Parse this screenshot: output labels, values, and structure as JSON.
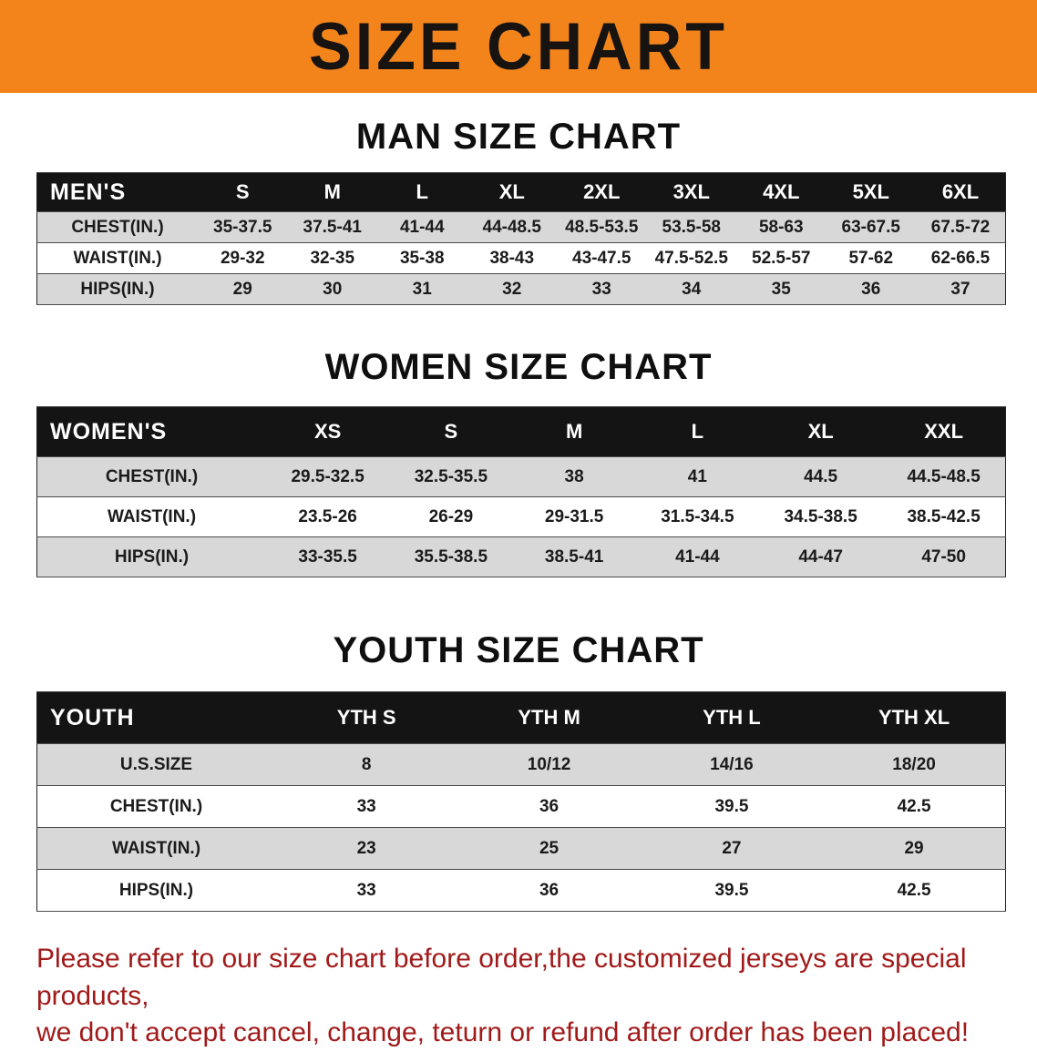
{
  "banner": {
    "title": "SIZE CHART"
  },
  "colors": {
    "banner_bg": "#f3841c",
    "table_header_bg": "#141414",
    "row_gray": "#d8d8d8",
    "footer_red": "#a11a1a"
  },
  "tables": [
    {
      "id": "men",
      "heading": "MAN SIZE CHART",
      "header_label": "MEN'S",
      "columns": [
        "S",
        "M",
        "L",
        "XL",
        "2XL",
        "3XL",
        "4XL",
        "5XL",
        "6XL"
      ],
      "rows": [
        {
          "label": "CHEST(IN.)",
          "values": [
            "35-37.5",
            "37.5-41",
            "41-44",
            "44-48.5",
            "48.5-53.5",
            "53.5-58",
            "58-63",
            "63-67.5",
            "67.5-72"
          ]
        },
        {
          "label": "WAIST(IN.)",
          "values": [
            "29-32",
            "32-35",
            "35-38",
            "38-43",
            "43-47.5",
            "47.5-52.5",
            "52.5-57",
            "57-62",
            "62-66.5"
          ]
        },
        {
          "label": "HIPS(IN.)",
          "values": [
            "29",
            "30",
            "31",
            "32",
            "33",
            "34",
            "35",
            "36",
            "37"
          ]
        }
      ]
    },
    {
      "id": "women",
      "heading": "WOMEN SIZE CHART",
      "header_label": "WOMEN'S",
      "columns": [
        "XS",
        "S",
        "M",
        "L",
        "XL",
        "XXL"
      ],
      "rows": [
        {
          "label": "CHEST(IN.)",
          "values": [
            "29.5-32.5",
            "32.5-35.5",
            "38",
            "41",
            "44.5",
            "44.5-48.5"
          ]
        },
        {
          "label": "WAIST(IN.)",
          "values": [
            "23.5-26",
            "26-29",
            "29-31.5",
            "31.5-34.5",
            "34.5-38.5",
            "38.5-42.5"
          ]
        },
        {
          "label": "HIPS(IN.)",
          "values": [
            "33-35.5",
            "35.5-38.5",
            "38.5-41",
            "41-44",
            "44-47",
            "47-50"
          ]
        }
      ]
    },
    {
      "id": "youth",
      "heading": "YOUTH SIZE CHART",
      "header_label": "YOUTH",
      "columns": [
        "YTH S",
        "YTH M",
        "YTH L",
        "YTH XL"
      ],
      "rows": [
        {
          "label": "U.S.SIZE",
          "values": [
            "8",
            "10/12",
            "14/16",
            "18/20"
          ]
        },
        {
          "label": "CHEST(IN.)",
          "values": [
            "33",
            "36",
            "39.5",
            "42.5"
          ]
        },
        {
          "label": "WAIST(IN.)",
          "values": [
            "23",
            "25",
            "27",
            "29"
          ]
        },
        {
          "label": "HIPS(IN.)",
          "values": [
            "33",
            "36",
            "39.5",
            "42.5"
          ]
        }
      ]
    }
  ],
  "footer": {
    "line1": "Please refer to our size chart before order,the customized jerseys are special products,",
    "line2": "we don't accept cancel, change, teturn or refund after order has been placed!"
  }
}
